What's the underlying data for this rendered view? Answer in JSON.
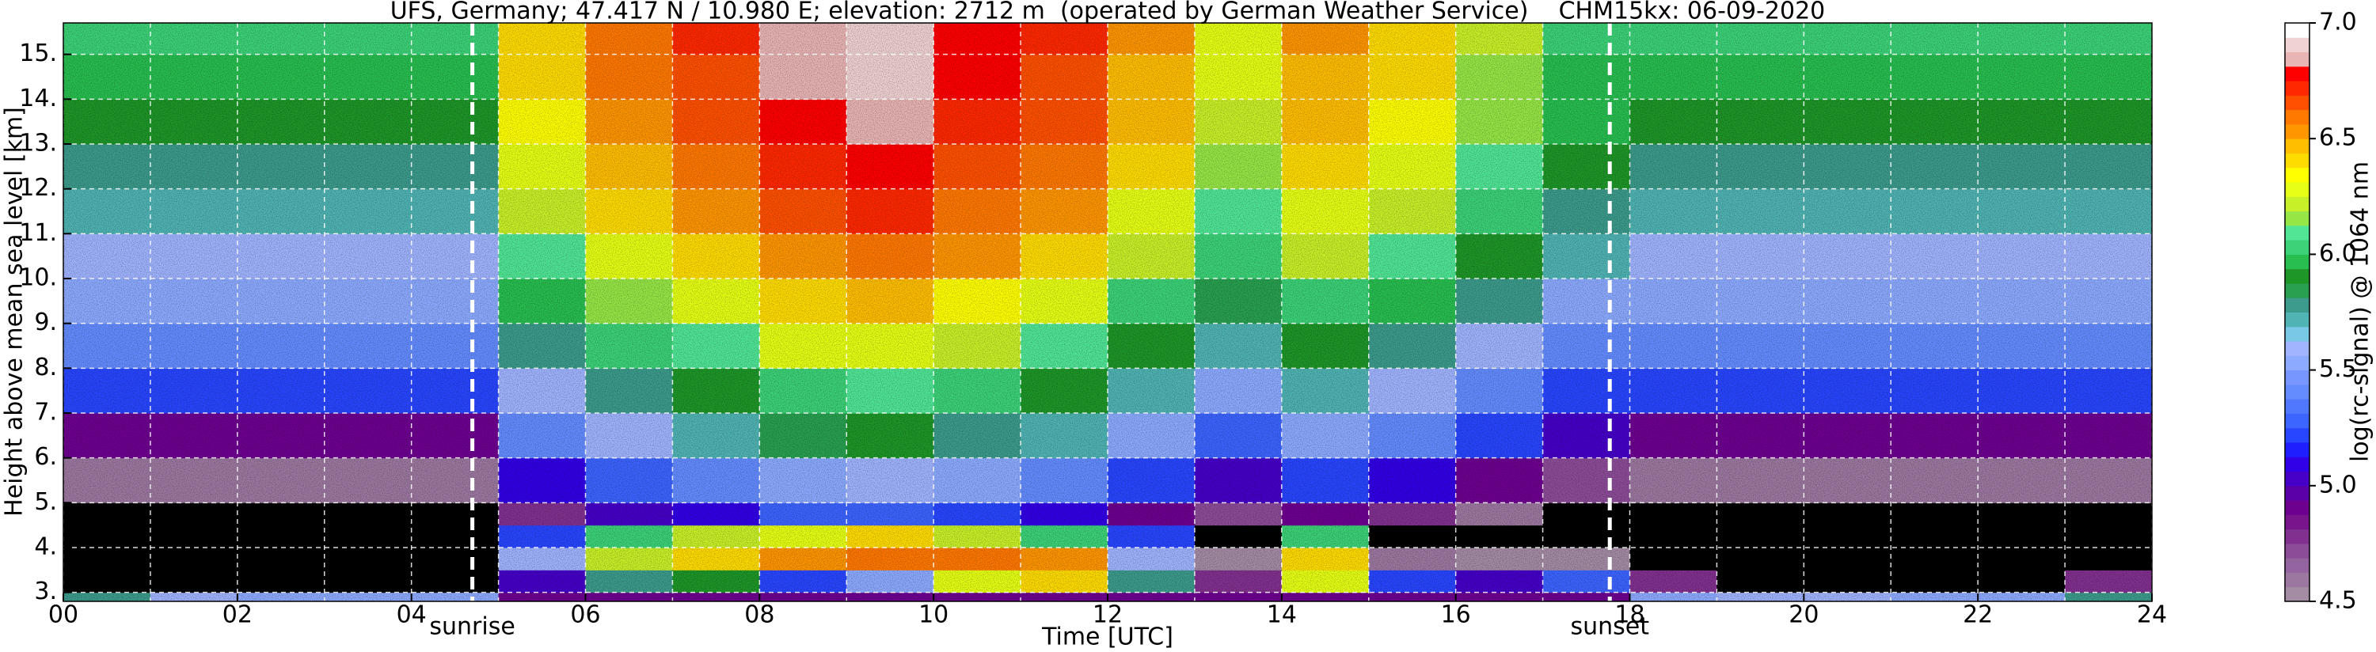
{
  "chart_data": {
    "type": "heatmap",
    "title": "UFS, Germany; 47.417 N / 10.980 E; elevation: 2712 m  (operated by German Weather Service)    CHM15kx: 06-09-2020",
    "xlabel": "Time [UTC]",
    "ylabel": "Height above mean sea level [km]",
    "colorbar_label": "log(rc-signal) @ 1064 nm",
    "xlim": [
      0,
      24
    ],
    "ylim": [
      2.8,
      15.7
    ],
    "xticks": [
      {
        "value": 0,
        "label": "00"
      },
      {
        "value": 2,
        "label": "02"
      },
      {
        "value": 4,
        "label": "04"
      },
      {
        "value": 6,
        "label": "06"
      },
      {
        "value": 8,
        "label": "08"
      },
      10,
      12,
      14,
      16,
      18,
      20,
      22,
      24
    ],
    "xminorticks": [
      1,
      3,
      5,
      7,
      9,
      11,
      13,
      15,
      17,
      19,
      21,
      23
    ],
    "yticks": [
      {
        "value": 3,
        "label": "3."
      },
      {
        "value": 4,
        "label": "4."
      },
      {
        "value": 5,
        "label": "5."
      },
      {
        "value": 6,
        "label": "6."
      },
      {
        "value": 7,
        "label": "7."
      },
      {
        "value": 8,
        "label": "8."
      },
      {
        "value": 9,
        "label": "9."
      },
      {
        "value": 10,
        "label": "10."
      },
      {
        "value": 11,
        "label": "11."
      },
      {
        "value": 12,
        "label": "12."
      },
      {
        "value": 13,
        "label": "13."
      },
      {
        "value": 14,
        "label": "14."
      },
      {
        "value": 15,
        "label": "15."
      }
    ],
    "grid": true,
    "clim": [
      4.5,
      7.0
    ],
    "cticks": [
      4.5,
      {
        "value": 5,
        "label": "5.0"
      },
      5.5,
      {
        "value": 6,
        "label": "6.0"
      },
      6.5,
      {
        "value": 7,
        "label": "7.0"
      }
    ],
    "under_color": "#000000",
    "colors": [
      "#a48ca4",
      "#9c78a0",
      "#9464a0",
      "#8c4c98",
      "#82308f",
      "#78148c",
      "#6e0090",
      "#5a00a8",
      "#4600c8",
      "#3200e6",
      "#1e1eff",
      "#2846ff",
      "#3c64ff",
      "#5078ff",
      "#648cff",
      "#7896ff",
      "#8caaff",
      "#a0b4ff",
      "#78c8e6",
      "#50b4b4",
      "#3c9b8c",
      "#28a050",
      "#1e9628",
      "#28be50",
      "#3cd278",
      "#50e696",
      "#96e646",
      "#c8f028",
      "#e6ff14",
      "#ffff00",
      "#ffdc00",
      "#ffbe00",
      "#ff9600",
      "#ff7800",
      "#ff5000",
      "#ff2800",
      "#ff0000",
      "#e8b4b4",
      "#f0d2d2",
      "#ffffff"
    ],
    "x_edges": [
      0,
      1,
      2,
      3,
      4,
      5,
      6,
      7,
      8,
      9,
      10,
      11,
      12,
      13,
      14,
      15,
      16,
      17,
      18,
      19,
      20,
      21,
      22,
      23,
      24
    ],
    "y_edges": [
      2.8,
      3.0,
      3.5,
      4.0,
      4.5,
      5,
      6,
      7,
      8,
      9,
      10,
      11,
      12,
      13,
      14,
      15,
      15.7
    ],
    "z": [
      [
        5.8,
        5.6,
        5.5,
        5.5,
        5.5,
        4.9,
        4.9,
        4.9,
        4.9,
        4.9,
        4.9,
        4.9,
        4.9,
        4.9,
        4.9,
        4.9,
        4.9,
        4.9,
        5.5,
        5.6,
        5.6,
        5.5,
        5.5,
        5.8
      ],
      [
        4.4,
        4.3,
        4.3,
        4.3,
        4.3,
        5.0,
        5.8,
        5.9,
        5.2,
        5.5,
        6.3,
        6.4,
        5.8,
        4.8,
        6.3,
        5.2,
        5.0,
        5.3,
        4.8,
        4.3,
        4.4,
        4.3,
        4.3,
        4.8
      ],
      [
        4.2,
        4.2,
        4.2,
        4.2,
        4.2,
        5.6,
        6.2,
        6.4,
        6.5,
        6.6,
        6.6,
        6.5,
        5.6,
        4.5,
        6.4,
        4.6,
        4.5,
        4.5,
        4.2,
        4.2,
        4.2,
        4.2,
        4.2,
        4.2
      ],
      [
        4.2,
        4.2,
        4.2,
        4.2,
        4.2,
        5.2,
        6.0,
        6.2,
        6.3,
        6.4,
        6.2,
        6.0,
        5.2,
        4.4,
        6.0,
        4.4,
        4.4,
        4.4,
        4.2,
        4.2,
        4.2,
        4.2,
        4.2,
        4.2
      ],
      [
        4.3,
        4.3,
        4.3,
        4.3,
        4.3,
        4.8,
        5.0,
        5.1,
        5.25,
        5.3,
        5.2,
        5.1,
        4.9,
        4.7,
        4.9,
        4.8,
        4.6,
        4.4,
        4.3,
        4.3,
        4.3,
        4.3,
        4.3,
        4.3
      ],
      [
        4.6,
        4.6,
        4.6,
        4.6,
        4.6,
        5.1,
        5.3,
        5.4,
        5.55,
        5.6,
        5.5,
        5.4,
        5.2,
        5.0,
        5.2,
        5.1,
        4.9,
        4.7,
        4.6,
        4.6,
        4.6,
        4.6,
        4.6,
        4.6
      ],
      [
        4.9,
        4.9,
        4.9,
        4.9,
        4.9,
        5.4,
        5.6,
        5.7,
        5.85,
        5.9,
        5.8,
        5.7,
        5.5,
        5.3,
        5.5,
        5.4,
        5.2,
        5.0,
        4.9,
        4.9,
        4.9,
        4.9,
        4.9,
        4.9
      ],
      [
        5.2,
        5.2,
        5.2,
        5.2,
        5.2,
        5.6,
        5.8,
        5.9,
        6.05,
        6.1,
        6.0,
        5.9,
        5.7,
        5.5,
        5.7,
        5.6,
        5.4,
        5.2,
        5.2,
        5.2,
        5.2,
        5.2,
        5.2,
        5.2
      ],
      [
        5.4,
        5.4,
        5.4,
        5.4,
        5.4,
        5.8,
        6.0,
        6.1,
        6.25,
        6.3,
        6.2,
        6.1,
        5.9,
        5.7,
        5.9,
        5.8,
        5.6,
        5.4,
        5.4,
        5.4,
        5.4,
        5.4,
        5.4,
        5.4
      ],
      [
        5.5,
        5.5,
        5.5,
        5.5,
        5.5,
        5.95,
        6.15,
        6.25,
        6.4,
        6.45,
        6.35,
        6.25,
        6.05,
        5.85,
        6.05,
        5.95,
        5.75,
        5.55,
        5.5,
        5.5,
        5.5,
        5.5,
        5.5,
        5.5
      ],
      [
        5.6,
        5.6,
        5.6,
        5.6,
        5.6,
        6.1,
        6.3,
        6.4,
        6.55,
        6.6,
        6.5,
        6.4,
        6.2,
        6.0,
        6.2,
        6.1,
        5.9,
        5.7,
        5.6,
        5.6,
        5.6,
        5.6,
        5.6,
        5.6
      ],
      [
        5.7,
        5.7,
        5.7,
        5.7,
        5.7,
        6.2,
        6.4,
        6.5,
        6.65,
        6.7,
        6.6,
        6.5,
        6.3,
        6.1,
        6.3,
        6.2,
        6.0,
        5.8,
        5.7,
        5.7,
        5.7,
        5.7,
        5.7,
        5.7
      ],
      [
        5.8,
        5.8,
        5.8,
        5.8,
        5.8,
        6.28,
        6.48,
        6.58,
        6.73,
        6.78,
        6.68,
        6.58,
        6.38,
        6.18,
        6.38,
        6.28,
        6.08,
        5.88,
        5.8,
        5.8,
        5.8,
        5.8,
        5.8,
        5.8
      ],
      [
        5.9,
        5.9,
        5.9,
        5.9,
        5.9,
        6.34,
        6.54,
        6.64,
        6.79,
        6.84,
        6.74,
        6.64,
        6.44,
        6.24,
        6.44,
        6.34,
        6.14,
        5.94,
        5.9,
        5.9,
        5.9,
        5.9,
        5.9,
        5.9
      ],
      [
        5.95,
        5.95,
        5.95,
        5.95,
        5.95,
        6.38,
        6.58,
        6.68,
        6.83,
        6.88,
        6.78,
        6.68,
        6.48,
        6.28,
        6.48,
        6.38,
        6.18,
        5.98,
        5.95,
        5.95,
        5.95,
        5.95,
        5.95,
        5.95
      ],
      [
        6.0,
        6.0,
        6.0,
        6.0,
        6.0,
        6.4,
        6.6,
        6.7,
        6.85,
        6.9,
        6.8,
        6.7,
        6.5,
        6.3,
        6.5,
        6.4,
        6.2,
        6.0,
        6.0,
        6.0,
        6.0,
        6.0,
        6.0,
        6.0
      ]
    ],
    "annotations": [
      {
        "x": 4.7,
        "label": "sunrise"
      },
      {
        "x": 17.77,
        "label": "sunset"
      }
    ]
  }
}
